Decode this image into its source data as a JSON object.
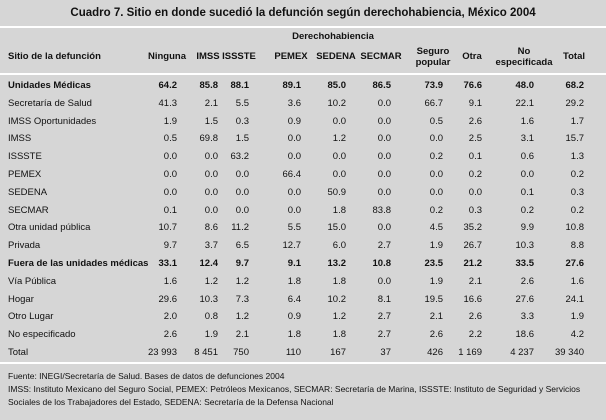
{
  "title": "Cuadro 7. Sitio en donde sucedió la defunción según derechohabiencia, México 2004",
  "table": {
    "group_header": "Derechohabiencia",
    "columns": [
      "Sitio de la defunción",
      "Ninguna",
      "IMSS",
      "ISSSTE",
      "PEMEX",
      "SEDENA",
      "SECMAR",
      "Seguro popular",
      "Otra",
      "No especificada",
      "Total"
    ],
    "rows": [
      [
        "Unidades Médicas",
        "64.2",
        "85.8",
        "88.1",
        "89.1",
        "85.0",
        "86.5",
        "73.9",
        "76.6",
        "48.0",
        "68.2"
      ],
      [
        "Secretaría de Salud",
        "41.3",
        "2.1",
        "5.5",
        "3.6",
        "10.2",
        "0.0",
        "66.7",
        "9.1",
        "22.1",
        "29.2"
      ],
      [
        "IMSS Oportunidades",
        "1.9",
        "1.5",
        "0.3",
        "0.9",
        "0.0",
        "0.0",
        "0.5",
        "2.6",
        "1.6",
        "1.7"
      ],
      [
        "IMSS",
        "0.5",
        "69.8",
        "1.5",
        "0.0",
        "1.2",
        "0.0",
        "0.0",
        "2.5",
        "3.1",
        "15.7"
      ],
      [
        "ISSSTE",
        "0.0",
        "0.0",
        "63.2",
        "0.0",
        "0.0",
        "0.0",
        "0.2",
        "0.1",
        "0.6",
        "1.3"
      ],
      [
        "PEMEX",
        "0.0",
        "0.0",
        "0.0",
        "66.4",
        "0.0",
        "0.0",
        "0.0",
        "0.2",
        "0.0",
        "0.2"
      ],
      [
        "SEDENA",
        "0.0",
        "0.0",
        "0.0",
        "0.0",
        "50.9",
        "0.0",
        "0.0",
        "0.0",
        "0.1",
        "0.3"
      ],
      [
        "SECMAR",
        "0.1",
        "0.0",
        "0.0",
        "0.0",
        "1.8",
        "83.8",
        "0.2",
        "0.3",
        "0.2",
        "0.2"
      ],
      [
        "Otra unidad pública",
        "10.7",
        "8.6",
        "11.2",
        "5.5",
        "15.0",
        "0.0",
        "4.5",
        "35.2",
        "9.9",
        "10.8"
      ],
      [
        "Privada",
        "9.7",
        "3.7",
        "6.5",
        "12.7",
        "6.0",
        "2.7",
        "1.9",
        "26.7",
        "10.3",
        "8.8"
      ],
      [
        "Fuera de las unidades médicas",
        "33.1",
        "12.4",
        "9.7",
        "9.1",
        "13.2",
        "10.8",
        "23.5",
        "21.2",
        "33.5",
        "27.6"
      ],
      [
        "Vía Pública",
        "1.6",
        "1.2",
        "1.2",
        "1.8",
        "1.8",
        "0.0",
        "1.9",
        "2.1",
        "2.6",
        "1.6"
      ],
      [
        "Hogar",
        "29.6",
        "10.3",
        "7.3",
        "6.4",
        "10.2",
        "8.1",
        "19.5",
        "16.6",
        "27.6",
        "24.1"
      ],
      [
        "Otro Lugar",
        "2.0",
        "0.8",
        "1.2",
        "0.9",
        "1.2",
        "2.7",
        "2.1",
        "2.6",
        "3.3",
        "1.9"
      ],
      [
        "No especificado",
        "2.6",
        "1.9",
        "2.1",
        "1.8",
        "1.8",
        "2.7",
        "2.6",
        "2.2",
        "18.6",
        "4.2"
      ],
      [
        "Total",
        "23 993",
        "8 451",
        "750",
        "110",
        "167",
        "37",
        "426",
        "1 169",
        "4 237",
        "39 340"
      ]
    ]
  },
  "notes": [
    "Fuente: INEGI/Secretaría de Salud. Bases de datos de defunciones 2004",
    "IMSS: Instituto Mexicano del Seguro Social,   PEMEX: Petróleos Mexicanos,   SECMAR: Secretaría de Marina,   ISSSTE: Instituto de Seguridad y Servicios Sociales de los Trabajadores del Estado,   SEDENA: Secretaría de la Defensa Nacional"
  ]
}
